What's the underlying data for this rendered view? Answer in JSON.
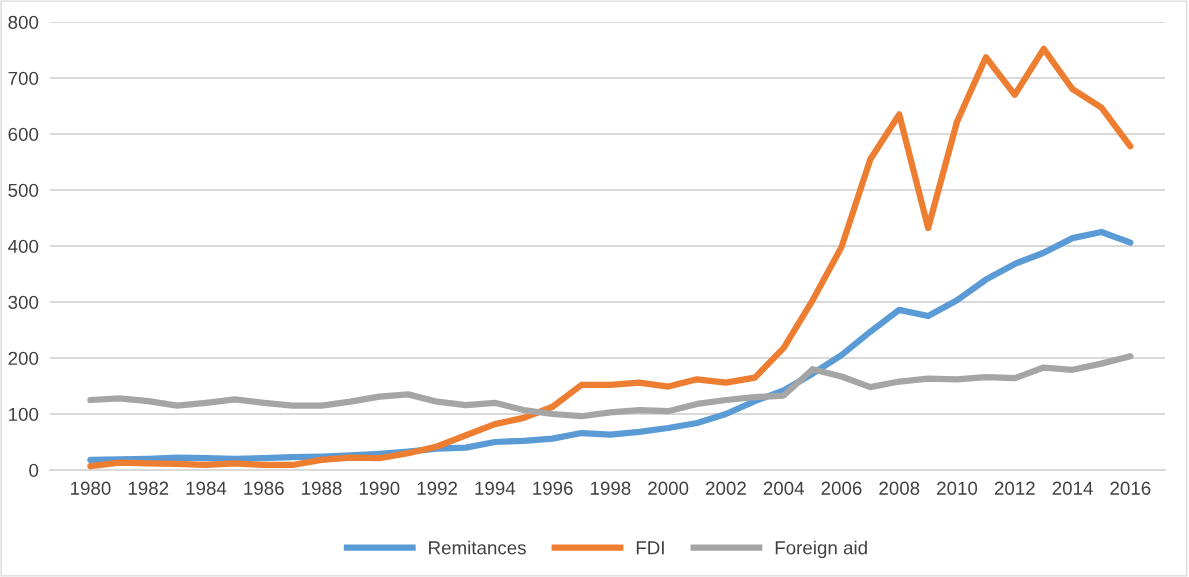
{
  "chart_data": {
    "type": "line",
    "x": [
      1980,
      1981,
      1982,
      1983,
      1984,
      1985,
      1986,
      1987,
      1988,
      1989,
      1990,
      1991,
      1992,
      1993,
      1994,
      1995,
      1996,
      1997,
      1998,
      1999,
      2000,
      2001,
      2002,
      2003,
      2004,
      2005,
      2006,
      2007,
      2008,
      2009,
      2010,
      2011,
      2012,
      2013,
      2014,
      2015,
      2016
    ],
    "series": [
      {
        "name": "Remitances",
        "color": "#5b9bd5",
        "values": [
          18,
          19,
          20,
          22,
          21,
          20,
          21,
          23,
          24,
          26,
          29,
          33,
          38,
          40,
          50,
          52,
          56,
          66,
          63,
          68,
          75,
          84,
          100,
          123,
          142,
          172,
          205,
          247,
          286,
          275,
          303,
          340,
          368,
          388,
          414,
          425,
          406
        ]
      },
      {
        "name": "FDI",
        "color": "#ed7d31",
        "values": [
          7,
          13,
          12,
          11,
          9,
          12,
          9,
          9,
          18,
          22,
          21,
          30,
          42,
          62,
          82,
          93,
          113,
          152,
          152,
          156,
          149,
          162,
          156,
          165,
          218,
          303,
          398,
          555,
          635,
          432,
          622,
          737,
          670,
          752,
          680,
          647,
          578
        ]
      },
      {
        "name": "Foreign aid",
        "color": "#a5a5a5",
        "values": [
          125,
          128,
          123,
          115,
          120,
          126,
          120,
          115,
          115,
          122,
          131,
          135,
          122,
          116,
          120,
          107,
          100,
          96,
          103,
          107,
          105,
          118,
          125,
          130,
          133,
          180,
          167,
          148,
          158,
          163,
          162,
          166,
          164,
          183,
          179,
          190,
          203
        ]
      }
    ],
    "xlim": [
      1978.6,
      2017.2
    ],
    "xticks": [
      1980,
      1982,
      1984,
      1986,
      1988,
      1990,
      1992,
      1994,
      1996,
      1998,
      2000,
      2002,
      2004,
      2006,
      2008,
      2010,
      2012,
      2014,
      2016
    ],
    "ylim": [
      0,
      800
    ],
    "yticks": [
      0,
      100,
      200,
      300,
      400,
      500,
      600,
      700,
      800
    ],
    "grid": "y",
    "legend": "bottom",
    "marker": "none",
    "line_style": "solid"
  }
}
